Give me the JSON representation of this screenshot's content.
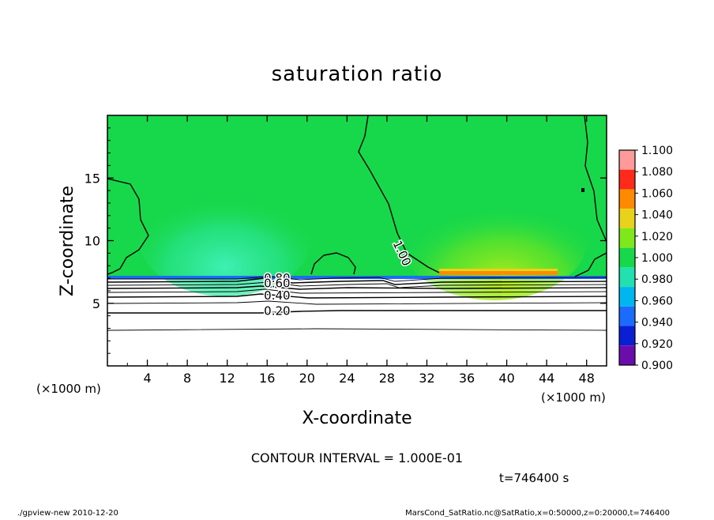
{
  "chart_data": {
    "type": "heatmap",
    "title": "saturation ratio",
    "xlabel": "X-coordinate",
    "ylabel": "Z-coordinate",
    "x_unit_label": "(×1000 m)",
    "y_unit_label": "(×1000 m)",
    "xlim": [
      0,
      50
    ],
    "ylim": [
      0,
      20
    ],
    "x_ticks": [
      4,
      8,
      12,
      16,
      20,
      24,
      28,
      32,
      36,
      40,
      44,
      48
    ],
    "y_ticks": [
      5,
      10,
      15
    ],
    "colorbar": {
      "levels": [
        0.9,
        0.92,
        0.94,
        0.96,
        0.98,
        1.0,
        1.02,
        1.04,
        1.06,
        1.08,
        1.1
      ],
      "labels": [
        "0.900",
        "0.920",
        "0.940",
        "0.960",
        "0.980",
        "1.000",
        "1.020",
        "1.040",
        "1.060",
        "1.080",
        "1.100"
      ],
      "colors": [
        "#6a0dad",
        "#0a1fd4",
        "#1c6bff",
        "#00b6f0",
        "#22e0b0",
        "#17d84a",
        "#7fe81a",
        "#e8d21a",
        "#ff8a00",
        "#ff2a1a",
        "#ff9a9a"
      ]
    },
    "contour_labels": [
      {
        "text": "1.00",
        "x": 29.5,
        "z": 9.0
      },
      {
        "text": "0.80",
        "x": 17.0,
        "z": 7.0
      },
      {
        "text": "0.60",
        "x": 17.0,
        "z": 6.6
      },
      {
        "text": "0.40",
        "x": 17.0,
        "z": 5.6
      },
      {
        "text": "0.20",
        "x": 17.0,
        "z": 4.4
      }
    ],
    "contour_interval_text": "CONTOUR INTERVAL = 1.000E-01",
    "time_text": "t=746400 s",
    "footer_left": "./gpview-new   2010-12-20",
    "footer_right": "MarsCond_SatRatio.nc@SatRatio,x=0:50000,z=0:20000,t=746400"
  }
}
